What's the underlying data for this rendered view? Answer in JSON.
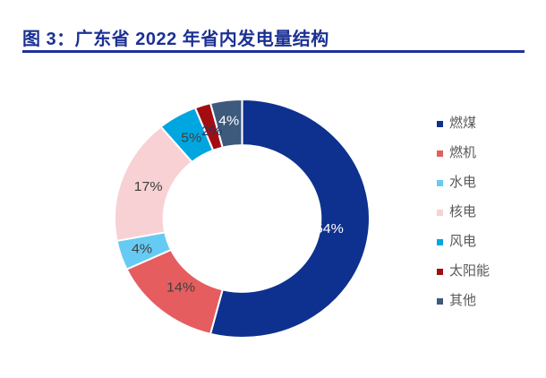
{
  "header": {
    "title": "图 3：广东省 2022 年省内发电量结构"
  },
  "theme": {
    "title_color": "#1B3193",
    "underline_color": "#1F3096",
    "legend_text_color": "#595959",
    "background": "#FFFFFF"
  },
  "chart_data": {
    "type": "pie",
    "subtype": "donut",
    "title": "广东省 2022 年省内发电量结构",
    "categories": [
      "燃煤",
      "燃机",
      "水电",
      "核电",
      "风电",
      "太阳能",
      "其他"
    ],
    "values": [
      54,
      14,
      4,
      17,
      5,
      2,
      4
    ],
    "value_labels": [
      "54%",
      "14%",
      "4%",
      "17%",
      "5%",
      "2%",
      "4%"
    ],
    "unit": "percent",
    "colors": [
      "#0E318F",
      "#E55D5F",
      "#66CBF2",
      "#F8D1D4",
      "#00A6E0",
      "#A30D12",
      "#3D5A7D"
    ],
    "label_colors": [
      "#FFFFFF",
      "#404040",
      "#404040",
      "#404040",
      "#404040",
      "#1F3864",
      "#FFFFFF"
    ],
    "start_angle": "top",
    "direction": "clockwise",
    "legend_position": "right",
    "grid": false
  }
}
